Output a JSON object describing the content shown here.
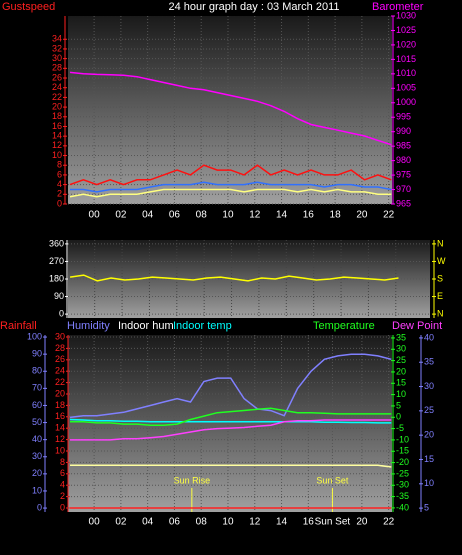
{
  "chart_data": [
    {
      "type": "line",
      "title": "24 hour graph day : 03 March 2011",
      "y_label": "Gustspeed",
      "y2_label": "Barometer",
      "x": [
        -1.8,
        -0.8,
        0.2,
        1.2,
        2.2,
        3.2,
        4.2,
        5.2,
        6.2,
        7.2,
        8.2,
        9.2,
        10.2,
        11.2,
        12.2,
        13.2,
        14.2,
        15.2,
        16.2,
        17.2,
        18.2,
        19.2,
        20.2,
        21.2,
        22.2
      ],
      "xlim": [
        -1.95,
        22.25
      ],
      "xticks": [
        {
          "value": 0,
          "label": "00"
        },
        {
          "value": 2,
          "label": "02"
        },
        {
          "value": 4,
          "label": "04"
        },
        {
          "value": 6,
          "label": "06"
        },
        {
          "value": 8,
          "label": "08"
        },
        10,
        12,
        14,
        16,
        18,
        20,
        22
      ],
      "ylim": [
        0,
        38.8
      ],
      "yticks": [
        0,
        2,
        4,
        6,
        8,
        10,
        12,
        14,
        16,
        18,
        20,
        22,
        24,
        26,
        28,
        30,
        32,
        34
      ],
      "y2lim": [
        965,
        1030
      ],
      "y2ticks": [
        965,
        970,
        975,
        980,
        985,
        990,
        995,
        1000,
        1005,
        1010,
        1015,
        1020,
        1025,
        1030
      ],
      "grid": true,
      "axis_colors": {
        "y": "#ff2020",
        "y2": "#ff00ff"
      },
      "series": [
        {
          "color": "#ff1010",
          "values": [
            4,
            5,
            4,
            5,
            4,
            5,
            5,
            6,
            7,
            6,
            8,
            7,
            7,
            6,
            8,
            6,
            7,
            6,
            7,
            6,
            6,
            7,
            5,
            6,
            5
          ]
        },
        {
          "color": "#3070ff",
          "values": [
            3,
            3,
            2.5,
            3,
            3,
            3,
            3.5,
            4,
            4,
            4,
            4.5,
            4,
            4,
            4,
            4.5,
            4,
            4,
            4,
            4,
            3.5,
            4,
            4,
            3.5,
            3.5,
            3
          ]
        },
        {
          "color": "#ffff80",
          "values": [
            1.5,
            2,
            1.5,
            2,
            2,
            2,
            2.5,
            3,
            3,
            3,
            3,
            3,
            3,
            2.5,
            3,
            3,
            3,
            2.5,
            3,
            2.5,
            3,
            2.5,
            2.5,
            2,
            2
          ]
        },
        {
          "color": "#ff00ff",
          "axis": "y2",
          "values": [
            1010.5,
            1010,
            1009.8,
            1009.7,
            1009.5,
            1009,
            1008,
            1007,
            1006,
            1005,
            1004.5,
            1003.5,
            1002.5,
            1001.5,
            1000.5,
            999,
            997,
            994.5,
            992.5,
            991.5,
            990.5,
            989.5,
            988.5,
            987,
            985.5
          ]
        }
      ]
    },
    {
      "type": "line",
      "x": [
        -1.8,
        -0.8,
        0.2,
        1.2,
        2.2,
        3.2,
        4.2,
        5.2,
        6.2,
        7.2,
        8.2,
        9.2,
        10.2,
        11.2,
        12.2,
        13.2,
        14.2,
        15.2,
        16.2,
        17.2,
        18.2,
        19.2,
        20.2,
        21.2,
        22.2
      ],
      "xlim": [
        -1.95,
        24.5
      ],
      "ylim": [
        -20,
        380
      ],
      "yticks": [
        0,
        90,
        180,
        270,
        360
      ],
      "y2lim": [
        -20,
        380
      ],
      "y2ticks": [
        {
          "value": 360,
          "label": "N"
        },
        {
          "value": 270,
          "label": "W"
        },
        {
          "value": 180,
          "label": "S"
        },
        {
          "value": 90,
          "label": "E"
        },
        {
          "value": 0,
          "label": "N"
        }
      ],
      "grid": true,
      "axis_colors": {
        "y": "#ffffff",
        "y2": "#ffff00"
      },
      "series": [
        {
          "color": "#ffff00",
          "values": [
            190,
            200,
            170,
            185,
            175,
            180,
            190,
            185,
            180,
            175,
            185,
            190,
            180,
            170,
            185,
            180,
            195,
            185,
            175,
            180,
            190,
            185,
            180,
            175,
            185
          ]
        }
      ]
    },
    {
      "type": "line",
      "x": [
        -1.8,
        -0.8,
        0.2,
        1.2,
        2.2,
        3.2,
        4.2,
        5.2,
        6.2,
        7.2,
        8.2,
        9.2,
        10.2,
        11.2,
        12.2,
        13.2,
        14.2,
        15.2,
        16.2,
        17.2,
        18.2,
        19.2,
        20.2,
        21.2,
        22.2
      ],
      "xlim": [
        -1.95,
        22.25
      ],
      "xticks": [
        {
          "value": 0,
          "label": "00"
        },
        {
          "value": 2,
          "label": "02"
        },
        {
          "value": 4,
          "label": "04"
        },
        {
          "value": 6,
          "label": "06"
        },
        {
          "value": 8,
          "label": "08"
        },
        10,
        12,
        14,
        16,
        {
          "value": 17.8,
          "label": "Sun Set"
        },
        20,
        22
      ],
      "ylim": [
        -0.7,
        30.35
      ],
      "yticks": [
        0,
        2,
        4,
        6,
        8,
        10,
        12,
        14,
        16,
        18,
        20,
        22,
        24,
        26,
        28,
        30
      ],
      "y2lim": [
        -2.3,
        101.2
      ],
      "y2ticks": [
        0,
        10,
        20,
        30,
        40,
        50,
        60,
        70,
        80,
        90,
        100
      ],
      "y3lim": [
        -41.8,
        36.3
      ],
      "y3ticks": [
        35,
        30,
        25,
        20,
        15,
        10,
        5,
        0,
        -5,
        -10,
        -15,
        -20,
        -25,
        -30,
        -35,
        -40
      ],
      "y4lim": [
        4.2,
        40.6
      ],
      "y4ticks": [
        40,
        35,
        30,
        25,
        20,
        15,
        10,
        5
      ],
      "grid": true,
      "axis_colors": {
        "y": "#ff2020",
        "y2": "#8080ff",
        "y3": "#20ff20",
        "y4": "#8080ff"
      },
      "annotations": [
        {
          "label": "Sun Rise",
          "x": 7.3
        },
        {
          "label": "Sun Set",
          "x": 17.8
        }
      ],
      "series": [
        {
          "name": "Rainfall",
          "color": "#ff2020",
          "values": [
            0,
            0,
            0,
            0,
            0,
            0,
            0,
            0,
            0,
            0,
            0,
            0,
            0,
            0,
            0,
            0,
            0,
            0,
            0,
            0,
            0,
            0,
            0,
            0,
            0
          ]
        },
        {
          "name": "Humidity",
          "color": "#8080ff",
          "axis": "y2",
          "values": [
            53,
            54,
            54,
            55,
            56,
            58,
            60,
            62,
            64,
            62,
            74,
            76,
            76,
            64,
            58,
            57,
            54,
            70,
            80,
            87,
            89,
            90,
            90,
            89,
            87
          ]
        },
        {
          "name": "Indoor hum",
          "color": "#ffffa0",
          "axis": "y2",
          "values": [
            25,
            25,
            25,
            25,
            25,
            25,
            25,
            25,
            25,
            25,
            25,
            25,
            25,
            25,
            25,
            25,
            25,
            25,
            25,
            25,
            25,
            25,
            25,
            25,
            24
          ]
        },
        {
          "name": "Indoor temp",
          "color": "#00ffff",
          "axis": "y3",
          "values": [
            -1,
            -1.2,
            -1.5,
            -1.5,
            -1.8,
            -1.8,
            -2,
            -2,
            -2,
            -2,
            -2,
            -2,
            -2,
            -2,
            -2,
            -2,
            -2,
            -2,
            -2,
            -2.2,
            -2.2,
            -2.3,
            -2.3,
            -2.5,
            -2.5
          ]
        },
        {
          "name": "Temperature",
          "color": "#20ff20",
          "axis": "y3",
          "values": [
            -2,
            -2,
            -2.5,
            -2.5,
            -3,
            -3,
            -3.5,
            -3.5,
            -3,
            -1,
            0.5,
            2,
            2.5,
            3,
            3.5,
            4,
            3,
            2,
            2,
            1.8,
            1.5,
            1.5,
            1.5,
            1.5,
            1.5
          ]
        },
        {
          "name": "Dew Point",
          "color": "#ff40ff",
          "axis": "y3",
          "values": [
            -10,
            -10,
            -10,
            -10,
            -9.5,
            -9.5,
            -9,
            -8.5,
            -7.5,
            -6.5,
            -5.5,
            -5,
            -4.8,
            -4.5,
            -4,
            -3.5,
            -2,
            -1.5,
            -1.5,
            -1.2,
            -1.2,
            -1.2,
            -1.2,
            -1.2,
            -1.2
          ]
        }
      ]
    }
  ]
}
